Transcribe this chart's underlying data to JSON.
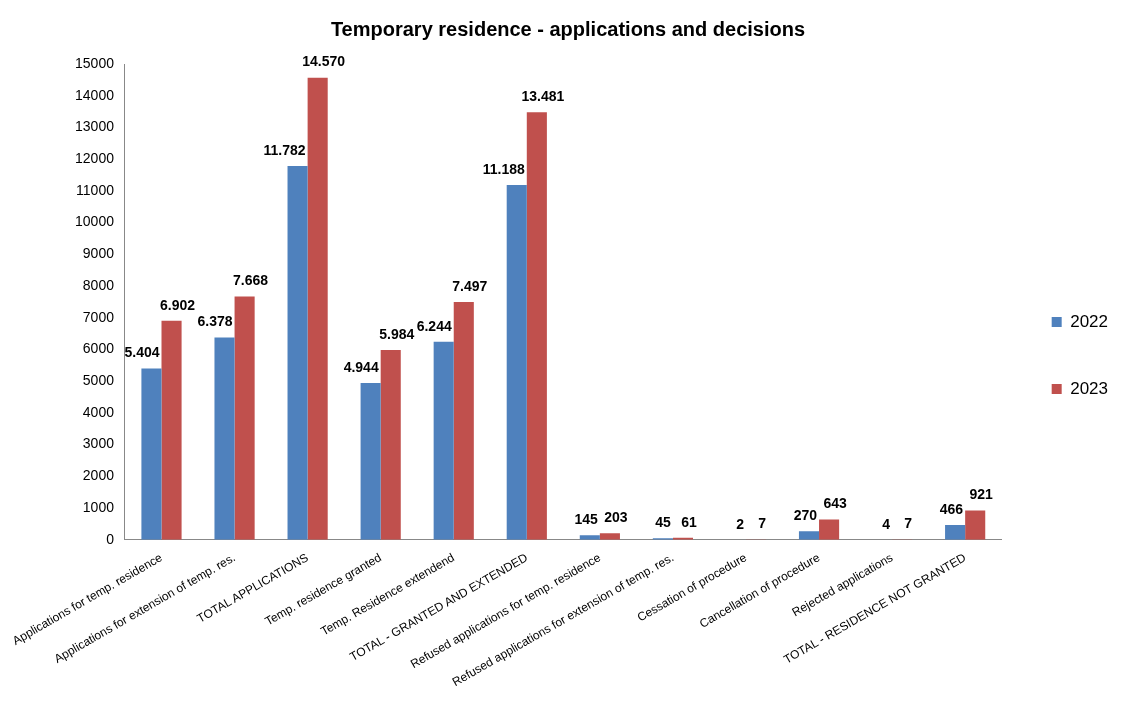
{
  "chart_data": {
    "type": "bar",
    "title": "Temporary residence - applications and decisions",
    "categories": [
      "Applications for temp. residence",
      "Applications for extension of temp. res.",
      "TOTAL APPLICATIONS",
      "Temp. residence granted",
      "Temp. Residence extendend",
      "TOTAL - GRANTED AND EXTENDED",
      "Refused applications for temp. residence",
      "Refused applications for extension of temp. res.",
      "Cessation of procedure",
      "Cancellation of procedure",
      "Rejected applications",
      "TOTAL - RESIDENCE NOT GRANTED"
    ],
    "series": [
      {
        "name": "2022",
        "color": "#4f81bd",
        "values": [
          5404,
          6378,
          11782,
          4944,
          6244,
          11188,
          145,
          45,
          2,
          270,
          4,
          466
        ],
        "value_labels": [
          "5.404",
          "6.378",
          "11.782",
          "4.944",
          "6.244",
          "11.188",
          "145",
          "45",
          "2",
          "270",
          "4",
          "466"
        ]
      },
      {
        "name": "2023",
        "color": "#c0504d",
        "values": [
          6902,
          7668,
          14570,
          5984,
          7497,
          13481,
          203,
          61,
          7,
          643,
          7,
          921
        ],
        "value_labels": [
          "6.902",
          "7.668",
          "14.570",
          "5.984",
          "7.497",
          "13.481",
          "203",
          "61",
          "7",
          "643",
          "7",
          "921"
        ]
      }
    ],
    "ylim": [
      0,
      15000
    ],
    "yticks": [
      0,
      1000,
      2000,
      3000,
      4000,
      5000,
      6000,
      7000,
      8000,
      9000,
      10000,
      11000,
      12000,
      13000,
      14000,
      15000
    ],
    "grid": false,
    "legend": "right"
  }
}
